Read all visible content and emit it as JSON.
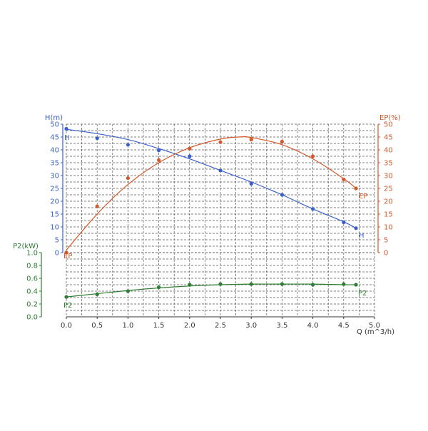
{
  "chart_data": {
    "type": "line",
    "x_axis": {
      "label": "Q (m^3/h)",
      "range": [
        0,
        5
      ],
      "ticks": [
        "0.0",
        "0.5",
        "1.0",
        "1.5",
        "2.0",
        "2.5",
        "3.0",
        "3.5",
        "4.0",
        "4.5",
        "5.0"
      ]
    },
    "left_axis_h": {
      "label": "H(m)",
      "range": [
        0,
        50
      ],
      "ticks": [
        "0",
        "5",
        "10",
        "15",
        "20",
        "25",
        "30",
        "35",
        "40",
        "45",
        "50"
      ],
      "color": "#3a5fc8"
    },
    "right_axis_ep": {
      "label": "EP(%)",
      "range": [
        0,
        50
      ],
      "ticks": [
        "0",
        "5",
        "10",
        "15",
        "20",
        "25",
        "30",
        "35",
        "40",
        "45",
        "50"
      ],
      "color": "#d2582a"
    },
    "left_axis_p2": {
      "label": "P2(kW)",
      "range": [
        0,
        1
      ],
      "ticks": [
        "0.0",
        "0.2",
        "0.4",
        "0.6",
        "0.8",
        "1.0"
      ],
      "color": "#2e7d32"
    },
    "grid": true,
    "series": [
      {
        "name": "H",
        "axis": "left_axis_h",
        "color": "#3a5fc8",
        "points": [
          [
            0.0,
            48.2
          ],
          [
            0.5,
            44.5
          ],
          [
            1.0,
            42.0
          ],
          [
            1.5,
            39.8
          ],
          [
            2.0,
            37.5
          ],
          [
            2.5,
            32.0
          ],
          [
            3.0,
            26.8
          ],
          [
            3.5,
            22.5
          ],
          [
            4.0,
            17.0
          ],
          [
            4.5,
            11.8
          ],
          [
            4.7,
            9.5
          ]
        ],
        "curve": [
          [
            0.0,
            48.0
          ],
          [
            0.5,
            46.3
          ],
          [
            1.0,
            44.0
          ],
          [
            1.5,
            40.5
          ],
          [
            2.0,
            36.5
          ],
          [
            2.5,
            32.0
          ],
          [
            3.0,
            27.5
          ],
          [
            3.5,
            22.5
          ],
          [
            4.0,
            17.0
          ],
          [
            4.5,
            12.0
          ],
          [
            4.7,
            9.5
          ]
        ]
      },
      {
        "name": "EP",
        "axis": "right_axis_ep",
        "color": "#d2582a",
        "points": [
          [
            0.0,
            0.0
          ],
          [
            0.5,
            18.0
          ],
          [
            1.0,
            29.0
          ],
          [
            1.5,
            36.0
          ],
          [
            2.0,
            40.5
          ],
          [
            2.5,
            43.0
          ],
          [
            3.0,
            44.0
          ],
          [
            3.5,
            43.2
          ],
          [
            4.0,
            37.5
          ],
          [
            4.5,
            28.5
          ],
          [
            4.7,
            25.0
          ]
        ],
        "curve": [
          [
            0.0,
            1.0
          ],
          [
            0.5,
            15.0
          ],
          [
            1.0,
            26.5
          ],
          [
            1.5,
            35.0
          ],
          [
            2.0,
            40.8
          ],
          [
            2.5,
            44.2
          ],
          [
            2.8,
            45.0
          ],
          [
            3.0,
            44.8
          ],
          [
            3.5,
            42.0
          ],
          [
            4.0,
            36.5
          ],
          [
            4.5,
            28.8
          ],
          [
            4.7,
            25.0
          ]
        ]
      },
      {
        "name": "P2",
        "axis": "left_axis_p2",
        "color": "#2e7d32",
        "points": [
          [
            0.0,
            0.31
          ],
          [
            0.5,
            0.35
          ],
          [
            1.0,
            0.4
          ],
          [
            1.5,
            0.46
          ],
          [
            2.0,
            0.5
          ],
          [
            2.5,
            0.51
          ],
          [
            3.0,
            0.51
          ],
          [
            3.5,
            0.51
          ],
          [
            4.0,
            0.5
          ],
          [
            4.5,
            0.51
          ],
          [
            4.7,
            0.5
          ]
        ],
        "curve": [
          [
            0.0,
            0.31
          ],
          [
            0.5,
            0.36
          ],
          [
            1.0,
            0.41
          ],
          [
            1.5,
            0.45
          ],
          [
            2.0,
            0.48
          ],
          [
            2.5,
            0.5
          ],
          [
            3.0,
            0.51
          ],
          [
            3.5,
            0.51
          ],
          [
            4.0,
            0.51
          ],
          [
            4.5,
            0.5
          ],
          [
            4.7,
            0.5
          ]
        ]
      }
    ]
  }
}
